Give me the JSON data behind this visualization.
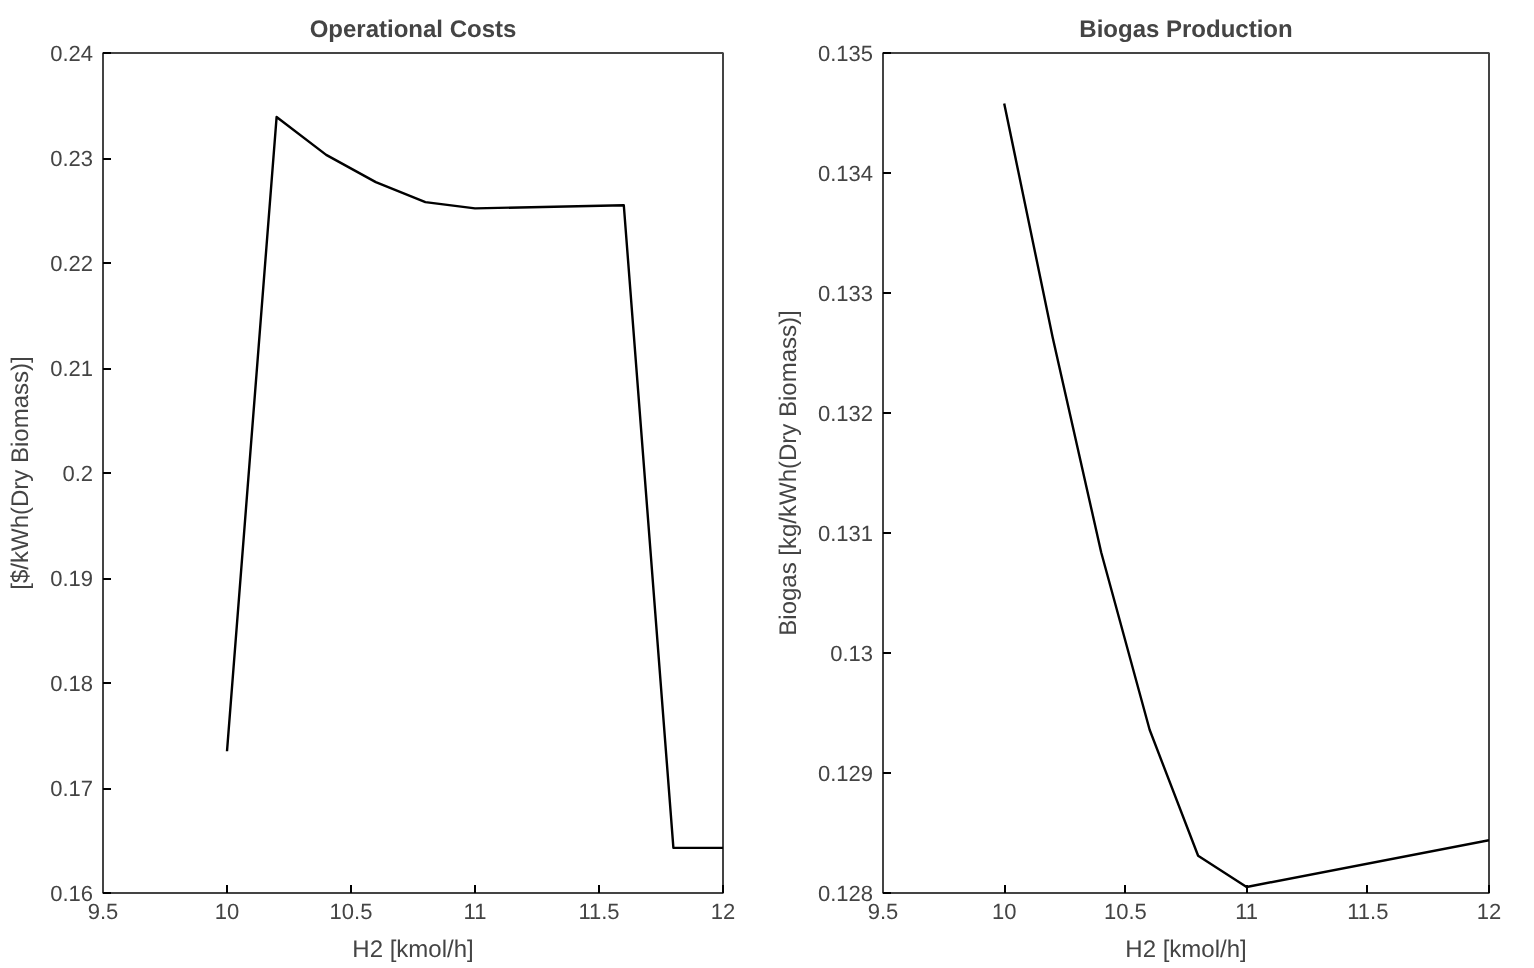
{
  "chart_data": [
    {
      "type": "line",
      "title": "Operational Costs",
      "xlabel": "H2 [kmol/h]",
      "ylabel": "[$/kWh(Dry Biomass)]",
      "x": [
        10,
        10.2,
        10.4,
        10.6,
        10.8,
        11,
        11.6,
        11.8,
        12
      ],
      "series": [
        {
          "color": "#000000",
          "values": [
            0.1735,
            0.2339,
            0.2303,
            0.2277,
            0.2258,
            0.2252,
            0.2255,
            0.1643,
            0.1643
          ]
        }
      ],
      "xlim": [
        9.5,
        12
      ],
      "xticks": [
        9.5,
        10,
        10.5,
        11,
        11.5,
        12
      ],
      "ylim": [
        0.16,
        0.24
      ],
      "yticks": [
        0.16,
        0.17,
        0.18,
        0.19,
        0.2,
        0.21,
        0.22,
        0.23,
        0.24
      ],
      "grid": false
    },
    {
      "type": "line",
      "title": "Biogas Production",
      "xlabel": "H2 [kmol/h]",
      "ylabel": "Biogas [kg/kWh(Dry Biomass)]",
      "x": [
        10,
        10.2,
        10.4,
        10.6,
        10.8,
        11,
        12
      ],
      "series": [
        {
          "color": "#000000",
          "values": [
            0.13458,
            0.13263,
            0.13084,
            0.12936,
            0.12831,
            0.12805,
            0.12844
          ]
        }
      ],
      "xlim": [
        9.5,
        12
      ],
      "xticks": [
        9.5,
        10,
        10.5,
        11,
        11.5,
        12
      ],
      "ylim": [
        0.128,
        0.135
      ],
      "yticks": [
        0.128,
        0.129,
        0.13,
        0.131,
        0.132,
        0.133,
        0.134,
        0.135
      ],
      "grid": false
    }
  ]
}
